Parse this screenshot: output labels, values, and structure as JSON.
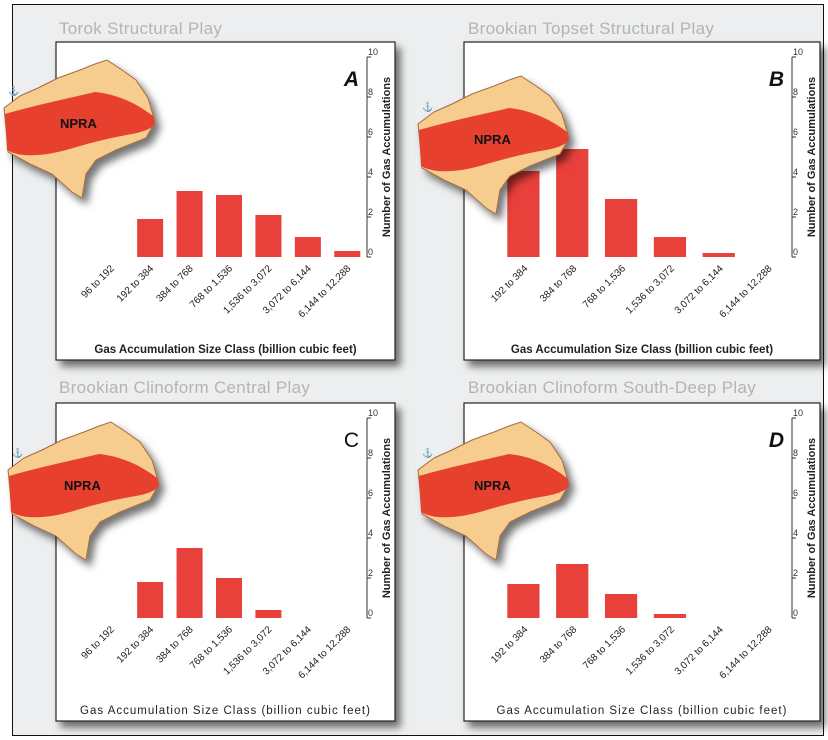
{
  "colors": {
    "bar": "#e8403a",
    "panel": "#ffffff",
    "frame_bg": "#eceeef",
    "map_light": "#f7cd8f",
    "map_dark": "#e8402f",
    "title": "#b4b4b4"
  },
  "panels": [
    {
      "title": "Torok Structural Play"
    },
    {
      "title": "Brookian Topset Structural Play"
    },
    {
      "title": "Brookian Clinoform Central Play"
    },
    {
      "title": "Brookian Clinoform South-Deep Play"
    }
  ],
  "chart_data": [
    {
      "type": "bar",
      "panel_letter": "A",
      "map_label": "NPRA",
      "categories": [
        "96 to 192",
        "192 to 384",
        "384 to 768",
        "768 to 1,536",
        "1,536 to 3,072",
        "3,072 to 6,144",
        "6,144 to 12,288"
      ],
      "values": [
        0,
        1.9,
        3.3,
        3.1,
        2.1,
        1.0,
        0.3
      ],
      "xlabel": "Gas Accumulation Size Class (billion cubic feet)",
      "ylabel": "Number of Gas Accumulations",
      "yticks": [
        "0",
        "2",
        "4",
        "6",
        "8",
        "10"
      ],
      "ylim": [
        0,
        10
      ]
    },
    {
      "type": "bar",
      "panel_letter": "B",
      "map_label": "NPRA",
      "categories": [
        "192 to 384",
        "384 to 768",
        "768 to 1,536",
        "1,536 to 3,072",
        "3,072 to 6,144",
        "6,144 to 12,288"
      ],
      "values": [
        4.3,
        5.4,
        2.9,
        1.0,
        0.2,
        0
      ],
      "xlabel": "Gas Accumulation Size Class (billion cubic feet)",
      "ylabel": "Number of Gas Accumulations",
      "yticks": [
        "0",
        "2",
        "4",
        "6",
        "8",
        "10"
      ],
      "ylim": [
        0,
        10
      ]
    },
    {
      "type": "bar",
      "panel_letter": "C",
      "map_label": "NPRA",
      "categories": [
        "96 to 192",
        "192 to 384",
        "384 to 768",
        "768 to 1,536",
        "1,536 to 3,072",
        "3,072 to 6,144",
        "6,144 to 12,288"
      ],
      "values": [
        0,
        1.8,
        3.5,
        2.0,
        0.4,
        0,
        0
      ],
      "xlabel": "Gas Accumulation Size Class (billion cubic feet)",
      "ylabel": "Number of Gas Accumulations",
      "yticks": [
        "0",
        "2",
        "4",
        "6",
        "8",
        "10"
      ],
      "ylim": [
        0,
        10
      ]
    },
    {
      "type": "bar",
      "panel_letter": "D",
      "map_label": "NPRA",
      "categories": [
        "192 to 384",
        "384 to 768",
        "768 to 1,536",
        "1,536 to 3,072",
        "3,072 to 6,144",
        "6,144 to 12,288"
      ],
      "values": [
        1.7,
        2.7,
        1.2,
        0.2,
        0,
        0
      ],
      "xlabel": "Gas Accumulation Size Class (billion cubic feet)",
      "ylabel": "Number of Gas Accumulations",
      "yticks": [
        "0",
        "2",
        "4",
        "6",
        "8",
        "10"
      ],
      "ylim": [
        0,
        10
      ]
    }
  ]
}
